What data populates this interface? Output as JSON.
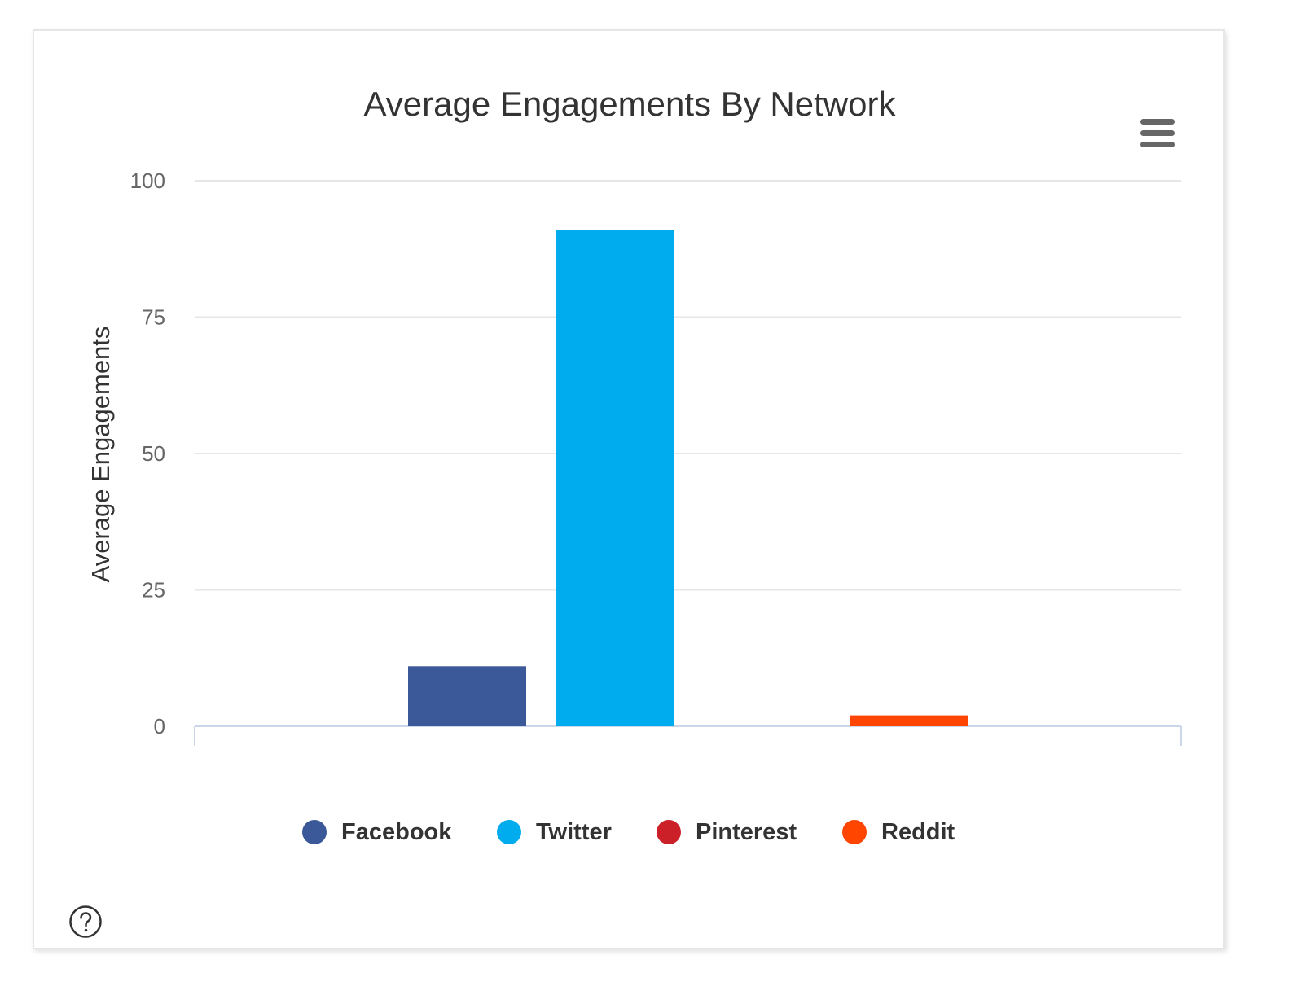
{
  "chart_data": {
    "type": "bar",
    "title": "Average Engagements By Network",
    "xlabel": "",
    "ylabel": "Average Engagements",
    "ylim": [
      0,
      100
    ],
    "yticks": [
      0,
      25,
      50,
      75,
      100
    ],
    "grid": true,
    "legend_position": "bottom",
    "series": [
      {
        "name": "Facebook",
        "value": 11,
        "color": "#3b5998"
      },
      {
        "name": "Twitter",
        "value": 91,
        "color": "#00acee"
      },
      {
        "name": "Pinterest",
        "value": 0,
        "color": "#cb2027"
      },
      {
        "name": "Reddit",
        "value": 2,
        "color": "#ff4500"
      }
    ]
  },
  "icons": {
    "menu": "hamburger-menu-icon",
    "help": "question-circle-icon"
  }
}
